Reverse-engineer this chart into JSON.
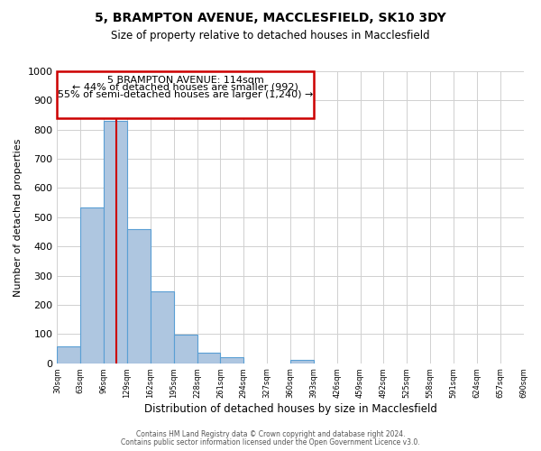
{
  "title": "5, BRAMPTON AVENUE, MACCLESFIELD, SK10 3DY",
  "subtitle": "Size of property relative to detached houses in Macclesfield",
  "xlabel": "Distribution of detached houses by size in Macclesfield",
  "ylabel": "Number of detached properties",
  "bin_edges": [
    30,
    63,
    96,
    129,
    162,
    195,
    228,
    261,
    294,
    327,
    360,
    393,
    426,
    459,
    492,
    525,
    558,
    591,
    624,
    657,
    690
  ],
  "bar_heights": [
    57,
    535,
    830,
    460,
    245,
    97,
    35,
    20,
    0,
    0,
    10,
    0,
    0,
    0,
    0,
    0,
    0,
    0,
    0,
    0
  ],
  "bar_color": "#aec6e0",
  "bar_edgecolor": "#5a9fd4",
  "property_size": 114,
  "red_line_color": "#cc0000",
  "annotation_line1": "5 BRAMPTON AVENUE: 114sqm",
  "annotation_line2": "← 44% of detached houses are smaller (992)",
  "annotation_line3": "55% of semi-detached houses are larger (1,240) →",
  "annotation_box_color": "#cc0000",
  "ylim": [
    0,
    1000
  ],
  "yticks": [
    0,
    100,
    200,
    300,
    400,
    500,
    600,
    700,
    800,
    900,
    1000
  ],
  "footer1": "Contains HM Land Registry data © Crown copyright and database right 2024.",
  "footer2": "Contains public sector information licensed under the Open Government Licence v3.0.",
  "bg_color": "#ffffff",
  "grid_color": "#d0d0d0"
}
